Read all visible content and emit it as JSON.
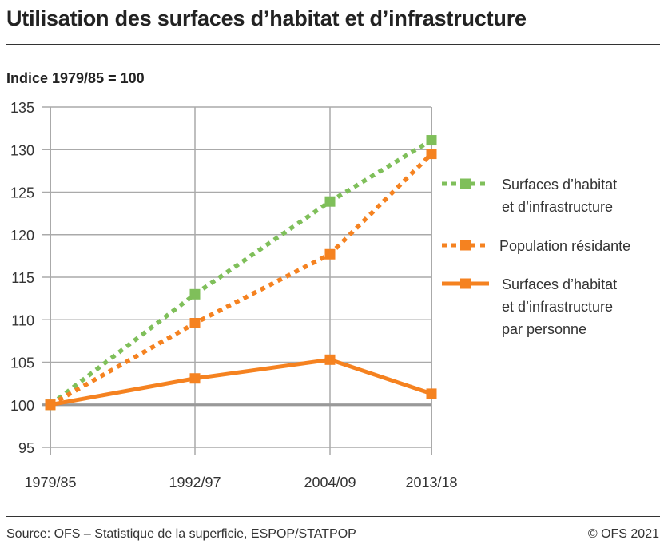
{
  "title": "Utilisation des surfaces d’habitat et d’infrastructure",
  "source": "Source: OFS – Statistique de la superficie, ESPOP/STATPOP",
  "copyright": "© OFS 2021",
  "chart_data": {
    "type": "line",
    "title": "Utilisation des surfaces d’habitat et d’infrastructure",
    "ylabel": "Indice 1979/85 = 100",
    "xlabel": "",
    "categories": [
      "1979/85",
      "1992/97",
      "2004/09",
      "2013/18"
    ],
    "ylim": [
      95,
      135
    ],
    "yticks": [
      95,
      100,
      105,
      110,
      115,
      120,
      125,
      130,
      135
    ],
    "grid": true,
    "legend_position": "right",
    "series": [
      {
        "name": "Surfaces d’habitat et d’infrastructure",
        "name_lines": [
          "Surfaces d’habitat",
          "et d’infrastructure"
        ],
        "values": [
          100,
          113.0,
          123.9,
          131.1
        ],
        "color": "#7fbf5a",
        "style": "dotted"
      },
      {
        "name": "Population résidante",
        "name_lines": [
          "Population résidante"
        ],
        "values": [
          100,
          109.6,
          117.7,
          129.5
        ],
        "color": "#f58220",
        "style": "dotted"
      },
      {
        "name": "Surfaces d’habitat et d’infrastructure par personne",
        "name_lines": [
          "Surfaces d’habitat",
          "et d’infrastructure",
          "par personne"
        ],
        "values": [
          100,
          103.1,
          105.3,
          101.3
        ],
        "color": "#f58220",
        "style": "solid"
      }
    ]
  }
}
